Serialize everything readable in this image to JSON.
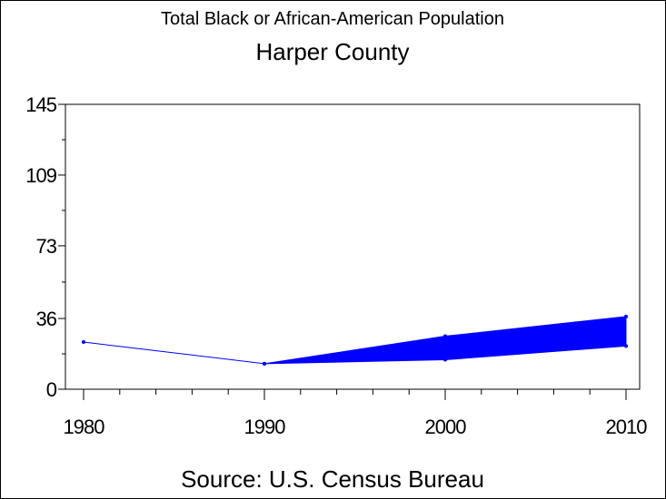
{
  "chart_data": {
    "type": "line",
    "title": "Total Black or African-American Population",
    "subtitle": "Harper County",
    "source": "Source: U.S. Census Bureau",
    "x_ticks": [
      "1980",
      "1990",
      "2000",
      "2010"
    ],
    "y_ticks": [
      "0",
      "36",
      "73",
      "109",
      "145"
    ],
    "ylim": [
      0,
      145
    ],
    "xlim": [
      1980,
      2010
    ],
    "series": [
      {
        "x": [
          1980,
          1990
        ],
        "y": [
          24,
          13
        ]
      }
    ],
    "band": {
      "x": [
        1990,
        2000,
        2010
      ],
      "upper": [
        13,
        27,
        37
      ],
      "lower": [
        13,
        15,
        22
      ]
    },
    "colors": {
      "series": "#0000ff",
      "band": "#0000ff",
      "axis": "#000000"
    }
  }
}
